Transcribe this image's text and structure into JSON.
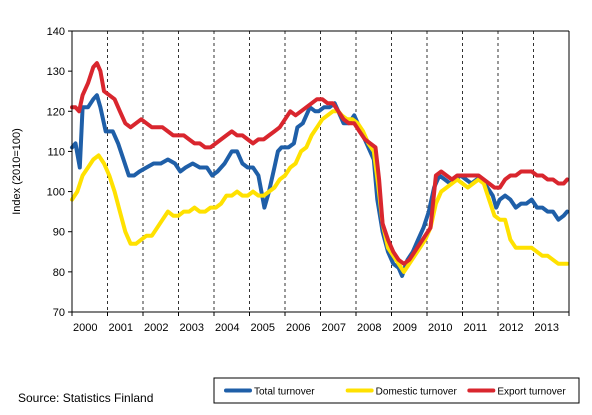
{
  "chart_data": {
    "type": "line",
    "ylabel": "Index (2010=100)",
    "xlabel": "",
    "title": "",
    "ylim": [
      70,
      140
    ],
    "yticks": [
      70,
      80,
      90,
      100,
      110,
      120,
      130,
      140
    ],
    "xlim": [
      2000,
      2014
    ],
    "year_labels": [
      "2000",
      "2001",
      "2002",
      "2003",
      "2004",
      "2005",
      "2006",
      "2007",
      "2008",
      "2009",
      "2010",
      "2011",
      "2012",
      "2013"
    ],
    "grid": "dashed vertical lines at year boundaries",
    "legend_position": "bottom-right",
    "source": "Source: Statistics Finland",
    "series": [
      {
        "name": "Total turnover",
        "color": "#1f5fa8",
        "points": [
          [
            2000.0,
            111
          ],
          [
            2000.1,
            112
          ],
          [
            2000.22,
            106
          ],
          [
            2000.3,
            121
          ],
          [
            2000.45,
            121
          ],
          [
            2000.6,
            123
          ],
          [
            2000.7,
            124
          ],
          [
            2000.8,
            121
          ],
          [
            2000.95,
            115
          ],
          [
            2001.15,
            115
          ],
          [
            2001.3,
            112
          ],
          [
            2001.45,
            108
          ],
          [
            2001.6,
            104
          ],
          [
            2001.75,
            104
          ],
          [
            2001.9,
            105
          ],
          [
            2002.1,
            106
          ],
          [
            2002.3,
            107
          ],
          [
            2002.5,
            107
          ],
          [
            2002.7,
            108
          ],
          [
            2002.9,
            107
          ],
          [
            2003.05,
            105
          ],
          [
            2003.2,
            106
          ],
          [
            2003.4,
            107
          ],
          [
            2003.6,
            106
          ],
          [
            2003.8,
            106
          ],
          [
            2003.95,
            104
          ],
          [
            2004.1,
            105
          ],
          [
            2004.3,
            107
          ],
          [
            2004.5,
            110
          ],
          [
            2004.65,
            110
          ],
          [
            2004.8,
            107
          ],
          [
            2004.95,
            106
          ],
          [
            2005.1,
            106
          ],
          [
            2005.25,
            104
          ],
          [
            2005.42,
            96
          ],
          [
            2005.55,
            100
          ],
          [
            2005.7,
            106
          ],
          [
            2005.8,
            110
          ],
          [
            2005.9,
            111
          ],
          [
            2006.1,
            111
          ],
          [
            2006.25,
            112
          ],
          [
            2006.35,
            116
          ],
          [
            2006.5,
            117
          ],
          [
            2006.7,
            121
          ],
          [
            2006.85,
            120
          ],
          [
            2006.95,
            120
          ],
          [
            2007.1,
            121
          ],
          [
            2007.25,
            121
          ],
          [
            2007.4,
            122
          ],
          [
            2007.5,
            120
          ],
          [
            2007.65,
            117
          ],
          [
            2007.8,
            117
          ],
          [
            2007.95,
            119
          ],
          [
            2008.1,
            116
          ],
          [
            2008.3,
            112
          ],
          [
            2008.5,
            108
          ],
          [
            2008.6,
            98
          ],
          [
            2008.75,
            90
          ],
          [
            2008.9,
            85
          ],
          [
            2009.05,
            82
          ],
          [
            2009.2,
            81
          ],
          [
            2009.3,
            79
          ],
          [
            2009.45,
            83
          ],
          [
            2009.6,
            85
          ],
          [
            2009.75,
            88
          ],
          [
            2009.9,
            91
          ],
          [
            2010.05,
            95
          ],
          [
            2010.2,
            101
          ],
          [
            2010.35,
            104
          ],
          [
            2010.5,
            103
          ],
          [
            2010.65,
            102
          ],
          [
            2010.8,
            103
          ],
          [
            2010.95,
            104
          ],
          [
            2011.1,
            103
          ],
          [
            2011.25,
            102
          ],
          [
            2011.4,
            103
          ],
          [
            2011.55,
            103
          ],
          [
            2011.7,
            101
          ],
          [
            2011.85,
            99
          ],
          [
            2011.95,
            96
          ],
          [
            2012.05,
            98
          ],
          [
            2012.2,
            99
          ],
          [
            2012.35,
            98
          ],
          [
            2012.5,
            96
          ],
          [
            2012.65,
            97
          ],
          [
            2012.8,
            97
          ],
          [
            2012.95,
            98
          ],
          [
            2013.1,
            96
          ],
          [
            2013.25,
            96
          ],
          [
            2013.4,
            95
          ],
          [
            2013.55,
            95
          ],
          [
            2013.7,
            93
          ],
          [
            2013.85,
            94
          ],
          [
            2013.95,
            95
          ]
        ]
      },
      {
        "name": "Domestic turnover",
        "color": "#ffe100",
        "points": [
          [
            2000.0,
            98
          ],
          [
            2000.15,
            100
          ],
          [
            2000.3,
            104
          ],
          [
            2000.45,
            106
          ],
          [
            2000.6,
            108
          ],
          [
            2000.75,
            109
          ],
          [
            2000.9,
            107
          ],
          [
            2001.05,
            104
          ],
          [
            2001.2,
            100
          ],
          [
            2001.35,
            95
          ],
          [
            2001.5,
            90
          ],
          [
            2001.65,
            87
          ],
          [
            2001.8,
            87
          ],
          [
            2001.95,
            88
          ],
          [
            2002.1,
            89
          ],
          [
            2002.25,
            89
          ],
          [
            2002.4,
            91
          ],
          [
            2002.55,
            93
          ],
          [
            2002.7,
            95
          ],
          [
            2002.85,
            94
          ],
          [
            2003.0,
            94
          ],
          [
            2003.15,
            95
          ],
          [
            2003.3,
            95
          ],
          [
            2003.45,
            96
          ],
          [
            2003.6,
            95
          ],
          [
            2003.75,
            95
          ],
          [
            2003.9,
            96
          ],
          [
            2004.05,
            96
          ],
          [
            2004.2,
            97
          ],
          [
            2004.35,
            99
          ],
          [
            2004.5,
            99
          ],
          [
            2004.65,
            100
          ],
          [
            2004.8,
            99
          ],
          [
            2004.95,
            99
          ],
          [
            2005.1,
            100
          ],
          [
            2005.25,
            99
          ],
          [
            2005.4,
            99
          ],
          [
            2005.55,
            100
          ],
          [
            2005.7,
            101
          ],
          [
            2005.85,
            103
          ],
          [
            2006.0,
            104
          ],
          [
            2006.15,
            106
          ],
          [
            2006.3,
            107
          ],
          [
            2006.45,
            110
          ],
          [
            2006.6,
            111
          ],
          [
            2006.75,
            114
          ],
          [
            2006.9,
            116
          ],
          [
            2007.05,
            118
          ],
          [
            2007.2,
            119
          ],
          [
            2007.35,
            120
          ],
          [
            2007.5,
            120
          ],
          [
            2007.6,
            119
          ],
          [
            2007.75,
            118
          ],
          [
            2007.9,
            118
          ],
          [
            2008.05,
            117
          ],
          [
            2008.2,
            115
          ],
          [
            2008.35,
            112
          ],
          [
            2008.5,
            110
          ],
          [
            2008.62,
            102
          ],
          [
            2008.75,
            92
          ],
          [
            2008.9,
            86
          ],
          [
            2009.05,
            84
          ],
          [
            2009.2,
            82
          ],
          [
            2009.35,
            80
          ],
          [
            2009.5,
            82
          ],
          [
            2009.65,
            84
          ],
          [
            2009.8,
            86
          ],
          [
            2009.95,
            88
          ],
          [
            2010.1,
            91
          ],
          [
            2010.25,
            97
          ],
          [
            2010.4,
            100
          ],
          [
            2010.55,
            101
          ],
          [
            2010.7,
            102
          ],
          [
            2010.85,
            103
          ],
          [
            2011.0,
            102
          ],
          [
            2011.15,
            101
          ],
          [
            2011.3,
            102
          ],
          [
            2011.45,
            103
          ],
          [
            2011.6,
            102
          ],
          [
            2011.75,
            98
          ],
          [
            2011.9,
            94
          ],
          [
            2012.05,
            93
          ],
          [
            2012.2,
            93
          ],
          [
            2012.35,
            88
          ],
          [
            2012.5,
            86
          ],
          [
            2012.65,
            86
          ],
          [
            2012.8,
            86
          ],
          [
            2012.95,
            86
          ],
          [
            2013.1,
            85
          ],
          [
            2013.25,
            84
          ],
          [
            2013.4,
            84
          ],
          [
            2013.55,
            83
          ],
          [
            2013.7,
            82
          ],
          [
            2013.85,
            82
          ],
          [
            2013.95,
            82
          ]
        ]
      },
      {
        "name": "Export turnover",
        "color": "#d9262e",
        "points": [
          [
            2000.0,
            121
          ],
          [
            2000.1,
            121
          ],
          [
            2000.2,
            120
          ],
          [
            2000.3,
            124
          ],
          [
            2000.45,
            127
          ],
          [
            2000.6,
            131
          ],
          [
            2000.7,
            132
          ],
          [
            2000.8,
            130
          ],
          [
            2000.9,
            125
          ],
          [
            2001.05,
            124
          ],
          [
            2001.2,
            123
          ],
          [
            2001.35,
            120
          ],
          [
            2001.5,
            117
          ],
          [
            2001.65,
            116
          ],
          [
            2001.8,
            117
          ],
          [
            2001.95,
            118
          ],
          [
            2002.1,
            117
          ],
          [
            2002.25,
            116
          ],
          [
            2002.4,
            116
          ],
          [
            2002.55,
            116
          ],
          [
            2002.7,
            115
          ],
          [
            2002.85,
            114
          ],
          [
            2003.0,
            114
          ],
          [
            2003.15,
            114
          ],
          [
            2003.3,
            113
          ],
          [
            2003.45,
            112
          ],
          [
            2003.6,
            112
          ],
          [
            2003.75,
            111
          ],
          [
            2003.9,
            111
          ],
          [
            2004.05,
            112
          ],
          [
            2004.2,
            113
          ],
          [
            2004.35,
            114
          ],
          [
            2004.5,
            115
          ],
          [
            2004.65,
            114
          ],
          [
            2004.8,
            114
          ],
          [
            2004.95,
            113
          ],
          [
            2005.1,
            112
          ],
          [
            2005.25,
            113
          ],
          [
            2005.4,
            113
          ],
          [
            2005.55,
            114
          ],
          [
            2005.7,
            115
          ],
          [
            2005.85,
            116
          ],
          [
            2006.0,
            118
          ],
          [
            2006.15,
            120
          ],
          [
            2006.3,
            119
          ],
          [
            2006.45,
            120
          ],
          [
            2006.6,
            121
          ],
          [
            2006.75,
            122
          ],
          [
            2006.9,
            123
          ],
          [
            2007.05,
            123
          ],
          [
            2007.2,
            122
          ],
          [
            2007.35,
            122
          ],
          [
            2007.5,
            120
          ],
          [
            2007.65,
            118
          ],
          [
            2007.8,
            117
          ],
          [
            2007.95,
            117
          ],
          [
            2008.1,
            115
          ],
          [
            2008.25,
            113
          ],
          [
            2008.4,
            112
          ],
          [
            2008.55,
            111
          ],
          [
            2008.65,
            103
          ],
          [
            2008.75,
            92
          ],
          [
            2008.9,
            88
          ],
          [
            2009.05,
            85
          ],
          [
            2009.2,
            83
          ],
          [
            2009.35,
            82
          ],
          [
            2009.5,
            83
          ],
          [
            2009.65,
            85
          ],
          [
            2009.8,
            87
          ],
          [
            2009.95,
            89
          ],
          [
            2010.1,
            91
          ],
          [
            2010.25,
            104
          ],
          [
            2010.4,
            105
          ],
          [
            2010.55,
            104
          ],
          [
            2010.7,
            103
          ],
          [
            2010.85,
            104
          ],
          [
            2011.0,
            104
          ],
          [
            2011.15,
            104
          ],
          [
            2011.3,
            104
          ],
          [
            2011.45,
            104
          ],
          [
            2011.6,
            103
          ],
          [
            2011.75,
            102
          ],
          [
            2011.9,
            101
          ],
          [
            2012.05,
            101
          ],
          [
            2012.2,
            103
          ],
          [
            2012.35,
            104
          ],
          [
            2012.5,
            104
          ],
          [
            2012.65,
            105
          ],
          [
            2012.8,
            105
          ],
          [
            2012.95,
            105
          ],
          [
            2013.1,
            104
          ],
          [
            2013.25,
            104
          ],
          [
            2013.4,
            103
          ],
          [
            2013.55,
            103
          ],
          [
            2013.7,
            102
          ],
          [
            2013.85,
            102
          ],
          [
            2013.95,
            103
          ]
        ]
      }
    ]
  }
}
